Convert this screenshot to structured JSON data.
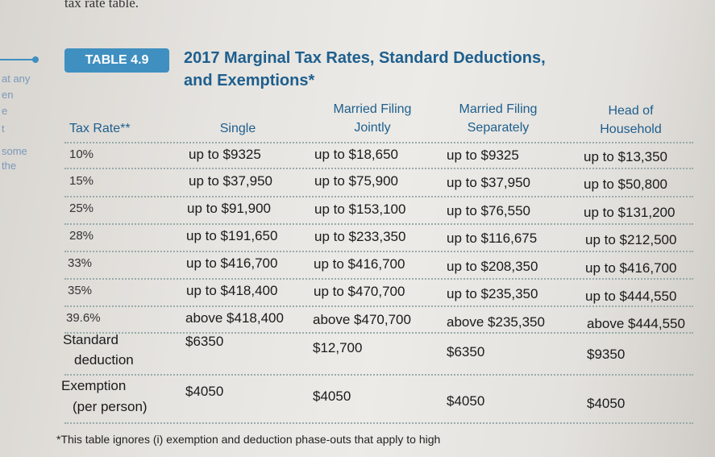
{
  "top_text": "tax rate table.",
  "margin_words": [
    "at any",
    "en",
    "e",
    "t",
    "some",
    "the"
  ],
  "badge": "TABLE 4.9",
  "title": "2017 Marginal Tax Rates, Standard Deductions, and Exemptions*",
  "headers": {
    "rate": "Tax Rate**",
    "single": "Single",
    "joint_l1": "Married Filing",
    "joint_l2": "Jointly",
    "sep_l1": "Married Filing",
    "sep_l2": "Separately",
    "head_l1": "Head of",
    "head_l2": "Household"
  },
  "rows": [
    {
      "rate": "10%",
      "single": "up to $9325",
      "joint": "up to $18,650",
      "separate": "up to $9325",
      "head": "up to $13,350"
    },
    {
      "rate": "15%",
      "single": "up to $37,950",
      "joint": "up to $75,900",
      "separate": "up to $37,950",
      "head": "up to $50,800"
    },
    {
      "rate": "25%",
      "single": "up to $91,900",
      "joint": "up to $153,100",
      "separate": "up to $76,550",
      "head": "up to $131,200"
    },
    {
      "rate": "28%",
      "single": "up to $191,650",
      "joint": "up to $233,350",
      "separate": "up to $116,675",
      "head": "up to $212,500"
    },
    {
      "rate": "33%",
      "single": "up to $416,700",
      "joint": "up to $416,700",
      "separate": "up to $208,350",
      "head": "up to $416,700"
    },
    {
      "rate": "35%",
      "single": "up to $418,400",
      "joint": "up to $470,700",
      "separate": "up to $235,350",
      "head": "up to $444,550"
    },
    {
      "rate": "39.6%",
      "single": "above $418,400",
      "joint": "above $470,700",
      "separate": "above $235,350",
      "head": "above $444,550"
    }
  ],
  "standard": {
    "label_l1": "Standard",
    "label_l2": "deduction",
    "single": "$6350",
    "joint": "$12,700",
    "separate": "$6350",
    "head": "$9350"
  },
  "exemption": {
    "label_l1": "Exemption",
    "label_l2": "(per person)",
    "single": "$4050",
    "joint": "$4050",
    "separate": "$4050",
    "head": "$4050"
  },
  "footnote": "*This table ignores (i) exemption and deduction phase-outs that apply to high"
}
